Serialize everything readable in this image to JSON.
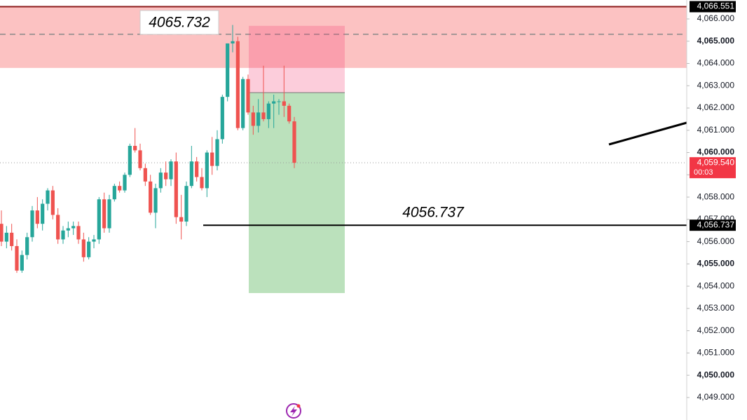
{
  "chart_data": {
    "type": "candlestick",
    "categories": [
      null,
      null,
      null,
      null,
      null,
      null,
      null,
      null,
      null,
      null,
      null,
      null,
      null,
      null,
      null,
      null,
      null,
      null,
      null,
      null,
      null,
      null,
      null,
      null,
      null,
      null,
      null,
      null,
      null,
      null,
      null,
      null,
      null,
      null,
      null,
      null,
      null,
      null,
      null,
      null,
      null,
      null,
      null,
      null,
      null,
      null,
      null,
      null,
      null,
      null,
      null,
      null,
      null,
      null,
      null,
      null,
      null,
      null
    ],
    "open": [
      4056.8,
      4056.0,
      4056.4,
      4055.8,
      4054.7,
      4055.4,
      4056.2,
      4057.4,
      4056.8,
      4057.7,
      4058.3,
      4057.2,
      4056.1,
      4056.5,
      4056.6,
      4056.7,
      4056.1,
      4055.3,
      4056.0,
      4056.1,
      4057.9,
      4056.6,
      4057.9,
      4058.5,
      4058.3,
      4059.0,
      4060.3,
      4060.1,
      4059.3,
      4058.7,
      4057.3,
      4058.4,
      4059.1,
      4058.8,
      4059.6,
      4057.1,
      4056.9,
      4058.5,
      4059.6,
      4058.9,
      4058.4,
      4060.0,
      4059.4,
      4060.6,
      4062.5,
      4064.9,
      4065.0,
      4061.1,
      4063.3,
      4061.8,
      4061.2,
      4061.8,
      4061.5,
      4062.2,
      4062.3,
      4062.3,
      4062.1,
      4061.4
    ],
    "high": [
      4057.4,
      4056.7,
      4056.8,
      4056.1,
      4055.6,
      4056.4,
      4057.6,
      4058.0,
      4057.9,
      4058.4,
      4058.5,
      4057.5,
      4056.7,
      4056.9,
      4056.9,
      4056.9,
      4056.4,
      4056.2,
      4056.3,
      4058.0,
      4058.2,
      4058.1,
      4058.6,
      4058.7,
      4059.1,
      4060.4,
      4061.1,
      4060.4,
      4059.5,
      4059.0,
      4058.6,
      4059.3,
      4059.6,
      4059.7,
      4060.0,
      4058.1,
      4058.7,
      4060.3,
      4059.8,
      4059.3,
      4060.1,
      4060.7,
      4061.0,
      4062.6,
      4064.9,
      4065.73,
      4065.2,
      4063.4,
      4063.5,
      4062.1,
      4062.4,
      4063.9,
      4062.3,
      4062.6,
      4062.4,
      4063.9,
      4062.2,
      4061.6
    ],
    "low": [
      4055.8,
      4055.7,
      4055.6,
      4054.6,
      4054.6,
      4055.2,
      4056.0,
      4056.6,
      4056.5,
      4057.4,
      4057.0,
      4055.9,
      4055.9,
      4056.2,
      4056.3,
      4055.9,
      4055.1,
      4055.2,
      4055.7,
      4055.9,
      4056.4,
      4056.4,
      4057.8,
      4058.2,
      4058.2,
      4058.9,
      4060.0,
      4059.2,
      4058.5,
      4057.2,
      4056.6,
      4058.2,
      4058.5,
      4058.5,
      4056.8,
      4056.1,
      4056.7,
      4058.4,
      4058.7,
      4058.3,
      4058.0,
      4059.0,
      4059.2,
      4060.4,
      4062.3,
      4064.5,
      4061.0,
      4061.0,
      4061.7,
      4060.8,
      4060.9,
      4061.4,
      4061.1,
      4061.1,
      4061.7,
      4061.6,
      4061.3,
      4059.3
    ],
    "close": [
      4056.0,
      4056.4,
      4055.8,
      4054.7,
      4055.4,
      4056.2,
      4057.4,
      4056.8,
      4057.7,
      4058.3,
      4057.2,
      4056.1,
      4056.5,
      4056.6,
      4056.7,
      4056.1,
      4055.3,
      4056.0,
      4056.1,
      4057.9,
      4056.6,
      4057.9,
      4058.5,
      4058.3,
      4059.0,
      4060.3,
      4060.1,
      4059.3,
      4058.7,
      4057.3,
      4058.4,
      4059.1,
      4058.8,
      4059.6,
      4057.1,
      4056.9,
      4058.5,
      4059.6,
      4058.9,
      4058.4,
      4060.0,
      4059.4,
      4060.6,
      4062.5,
      4064.9,
      4065.0,
      4061.1,
      4063.3,
      4061.8,
      4061.2,
      4061.8,
      4061.5,
      4062.2,
      4062.3,
      4062.3,
      4062.1,
      4061.4,
      4059.54
    ],
    "up_color": "#26a69a",
    "down_color": "#ef5350",
    "ylim": [
      4047.99,
      4066.85
    ],
    "yticks": [
      {
        "value": 4066,
        "label": "4,066.000"
      },
      {
        "value": 4065,
        "label": "4,065.000"
      },
      {
        "value": 4064,
        "label": "4,064.000"
      },
      {
        "value": 4063,
        "label": "4,063.000"
      },
      {
        "value": 4062,
        "label": "4,062.000"
      },
      {
        "value": 4061,
        "label": "4,061.000"
      },
      {
        "value": 4060,
        "label": "4,060.000"
      },
      {
        "value": 4059,
        "label": "4,059.000"
      },
      {
        "value": 4058,
        "label": "4,058.000"
      },
      {
        "value": 4057,
        "label": "4,057.000"
      },
      {
        "value": 4056,
        "label": "4,056.000"
      },
      {
        "value": 4055,
        "label": "4,055.000"
      },
      {
        "value": 4054,
        "label": "4,054.000"
      },
      {
        "value": 4053,
        "label": "4,053.000"
      },
      {
        "value": 4052,
        "label": "4,052.000"
      },
      {
        "value": 4051,
        "label": "4,051.000"
      },
      {
        "value": 4050,
        "label": "4,050.000"
      },
      {
        "value": 4049,
        "label": "4,049.000"
      }
    ],
    "zone": {
      "from": 4063.8,
      "to": 4066.551
    },
    "dashed_level": 4065.31,
    "position": {
      "stop": 4065.69,
      "entry": 4062.69,
      "target": 4053.69
    },
    "price_labels": [
      {
        "value": 4066.551,
        "label": "4,066.551",
        "color": "#000000"
      },
      {
        "value": 4059.54,
        "label": "4,059.540",
        "countdown": "00:03",
        "color": "#f23645"
      },
      {
        "value": 4056.737,
        "label": "4,056.737",
        "color": "#000000"
      }
    ],
    "annotations": [
      {
        "text": "4065.732",
        "value": 4065.732
      },
      {
        "text": "4056.737",
        "value": 4056.737
      }
    ]
  }
}
